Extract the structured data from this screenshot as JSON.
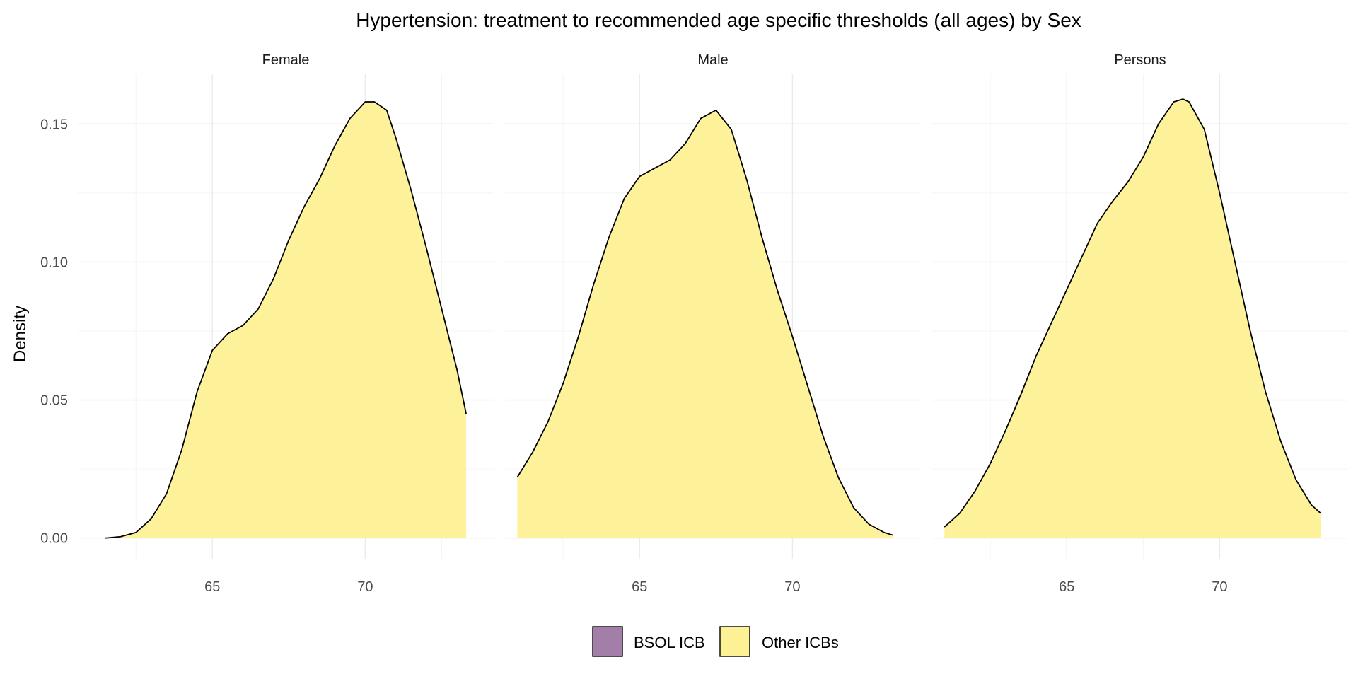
{
  "chart_data": {
    "type": "area",
    "title": "Hypertension: treatment to recommended age specific thresholds (all ages) by Sex",
    "ylabel": "Density",
    "xlabel": "",
    "facets": [
      "Female",
      "Male",
      "Persons"
    ],
    "xlim": [
      60.6,
      74.2
    ],
    "ylim": [
      -0.0075,
      0.168
    ],
    "x_ticks": [
      65,
      70
    ],
    "x_tick_labels": [
      "65",
      "70"
    ],
    "y_ticks": [
      0,
      0.05,
      0.1,
      0.15
    ],
    "y_tick_labels": [
      "0.00",
      "0.05",
      "0.10",
      "0.15"
    ],
    "grid": true,
    "legend": {
      "position": "bottom",
      "items": [
        {
          "label": "BSOL ICB",
          "color": "#a27ea8"
        },
        {
          "label": "Other ICBs",
          "color": "#fdf195"
        }
      ]
    },
    "series": [
      {
        "facet": "Female",
        "group": "Other ICBs",
        "color": "#fdf195",
        "x": [
          61.5,
          62.0,
          62.5,
          63.0,
          63.5,
          64.0,
          64.5,
          65.0,
          65.5,
          66.0,
          66.5,
          67.0,
          67.5,
          68.0,
          68.5,
          69.0,
          69.5,
          70.0,
          70.3,
          70.7,
          71.0,
          71.5,
          72.0,
          72.5,
          73.0,
          73.3
        ],
        "y": [
          0.0,
          0.0005,
          0.002,
          0.007,
          0.016,
          0.032,
          0.053,
          0.068,
          0.074,
          0.077,
          0.083,
          0.094,
          0.108,
          0.12,
          0.13,
          0.142,
          0.152,
          0.158,
          0.158,
          0.155,
          0.145,
          0.126,
          0.105,
          0.083,
          0.061,
          0.045
        ]
      },
      {
        "facet": "Male",
        "group": "Other ICBs",
        "color": "#fdf195",
        "x": [
          61.0,
          61.5,
          62.0,
          62.5,
          63.0,
          63.5,
          64.0,
          64.5,
          65.0,
          65.5,
          66.0,
          66.5,
          67.0,
          67.5,
          68.0,
          68.5,
          69.0,
          69.5,
          70.0,
          70.5,
          71.0,
          71.5,
          72.0,
          72.5,
          73.0,
          73.3
        ],
        "y": [
          0.022,
          0.031,
          0.042,
          0.056,
          0.073,
          0.092,
          0.109,
          0.123,
          0.131,
          0.134,
          0.137,
          0.143,
          0.152,
          0.155,
          0.148,
          0.13,
          0.109,
          0.09,
          0.073,
          0.055,
          0.037,
          0.022,
          0.011,
          0.005,
          0.002,
          0.001
        ]
      },
      {
        "facet": "Persons",
        "group": "Other ICBs",
        "color": "#fdf195",
        "x": [
          61.0,
          61.5,
          62.0,
          62.5,
          63.0,
          63.5,
          64.0,
          64.5,
          65.0,
          65.5,
          66.0,
          66.5,
          67.0,
          67.5,
          68.0,
          68.5,
          68.8,
          69.0,
          69.5,
          70.0,
          70.5,
          71.0,
          71.5,
          72.0,
          72.5,
          73.0,
          73.3
        ],
        "y": [
          0.004,
          0.009,
          0.017,
          0.027,
          0.039,
          0.052,
          0.066,
          0.078,
          0.09,
          0.102,
          0.114,
          0.122,
          0.129,
          0.138,
          0.15,
          0.158,
          0.159,
          0.158,
          0.148,
          0.125,
          0.1,
          0.075,
          0.053,
          0.035,
          0.021,
          0.012,
          0.009
        ]
      }
    ]
  }
}
